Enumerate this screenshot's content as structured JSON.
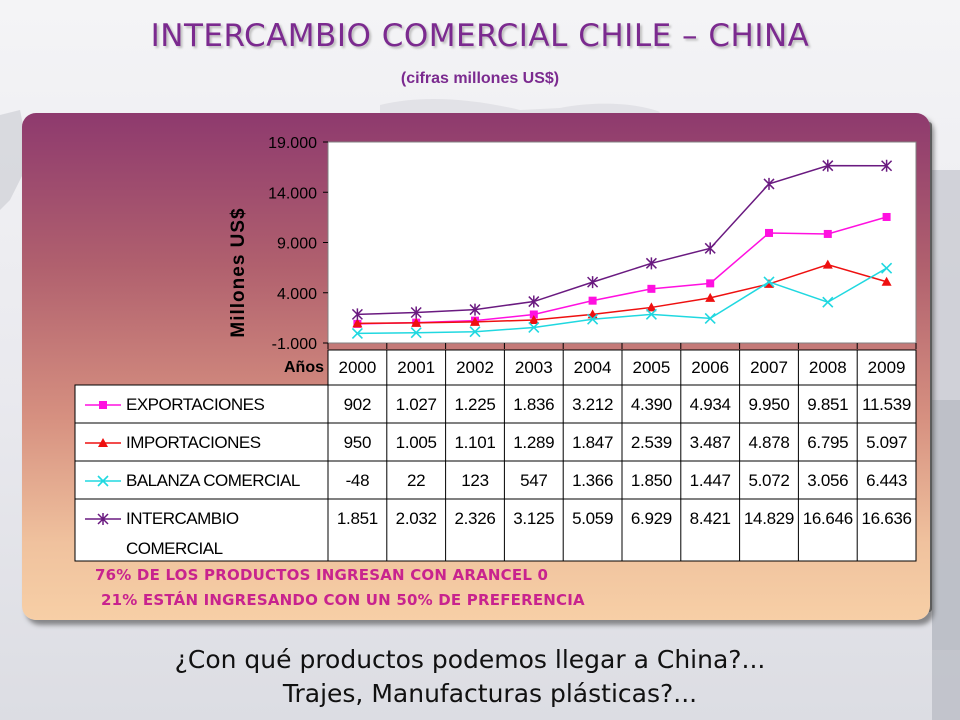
{
  "header": {
    "title": "INTERCAMBIO COMERCIAL CHILE – CHINA",
    "subtitle": "(cifras millones US$)"
  },
  "notes": {
    "line1": "76% DE LOS PRODUCTOS INGRESAN CON ARANCEL 0",
    "line2": "21% ESTÁN INGRESANDO CON UN 50% DE PREFERENCIA"
  },
  "question": {
    "line1": "¿Con qué productos podemos llegar a China?...",
    "line2": "Trajes, Manufacturas plásticas?..."
  },
  "colors": {
    "title": "#7b2a8f",
    "note": "#c8238e",
    "exportaciones": "#ff10e0",
    "importaciones": "#ee1010",
    "balanza": "#20d8e0",
    "intercambio": "#6a1a80"
  },
  "chart_data": {
    "type": "line",
    "title": "",
    "xlabel": "Años",
    "ylabel": "Millones US$",
    "ylim": [
      -1000,
      19000
    ],
    "yticks": [
      "19.000",
      "14.000",
      "9.000",
      "4.000",
      "-1.000"
    ],
    "ytick_values": [
      19000,
      14000,
      9000,
      4000,
      -1000
    ],
    "grid": false,
    "legend": "table-below",
    "categories": [
      "2000",
      "2001",
      "2002",
      "2003",
      "2004",
      "2005",
      "2006",
      "2007",
      "2008",
      "2009"
    ],
    "series": [
      {
        "name": "EXPORTACIONES",
        "marker": "square",
        "color": "#ff10e0",
        "values": [
          902,
          1027,
          1225,
          1836,
          3212,
          4390,
          4934,
          9950,
          9851,
          11539
        ],
        "labels": [
          "902",
          "1.027",
          "1.225",
          "1.836",
          "3.212",
          "4.390",
          "4.934",
          "9.950",
          "9.851",
          "11.539"
        ]
      },
      {
        "name": "IMPORTACIONES",
        "marker": "triangle",
        "color": "#ee1010",
        "values": [
          950,
          1005,
          1101,
          1289,
          1847,
          2539,
          3487,
          4878,
          6795,
          5097
        ],
        "labels": [
          "950",
          "1.005",
          "1.101",
          "1.289",
          "1.847",
          "2.539",
          "3.487",
          "4.878",
          "6.795",
          "5.097"
        ]
      },
      {
        "name": "BALANZA COMERCIAL",
        "marker": "x",
        "color": "#20d8e0",
        "values": [
          -48,
          22,
          123,
          547,
          1366,
          1850,
          1447,
          5072,
          3056,
          6443
        ],
        "labels": [
          "-48",
          "22",
          "123",
          "547",
          "1.366",
          "1.850",
          "1.447",
          "5.072",
          "3.056",
          "6.443"
        ]
      },
      {
        "name": "INTERCAMBIO COMERCIAL",
        "name_lines": [
          "INTERCAMBIO",
          "COMERCIAL"
        ],
        "marker": "star",
        "color": "#6a1a80",
        "values": [
          1851,
          2032,
          2326,
          3125,
          5059,
          6929,
          8421,
          14829,
          16646,
          16636
        ],
        "labels": [
          "1.851",
          "2.032",
          "2.326",
          "3.125",
          "5.059",
          "6.929",
          "8.421",
          "14.829",
          "16.646",
          "16.636"
        ]
      }
    ]
  }
}
